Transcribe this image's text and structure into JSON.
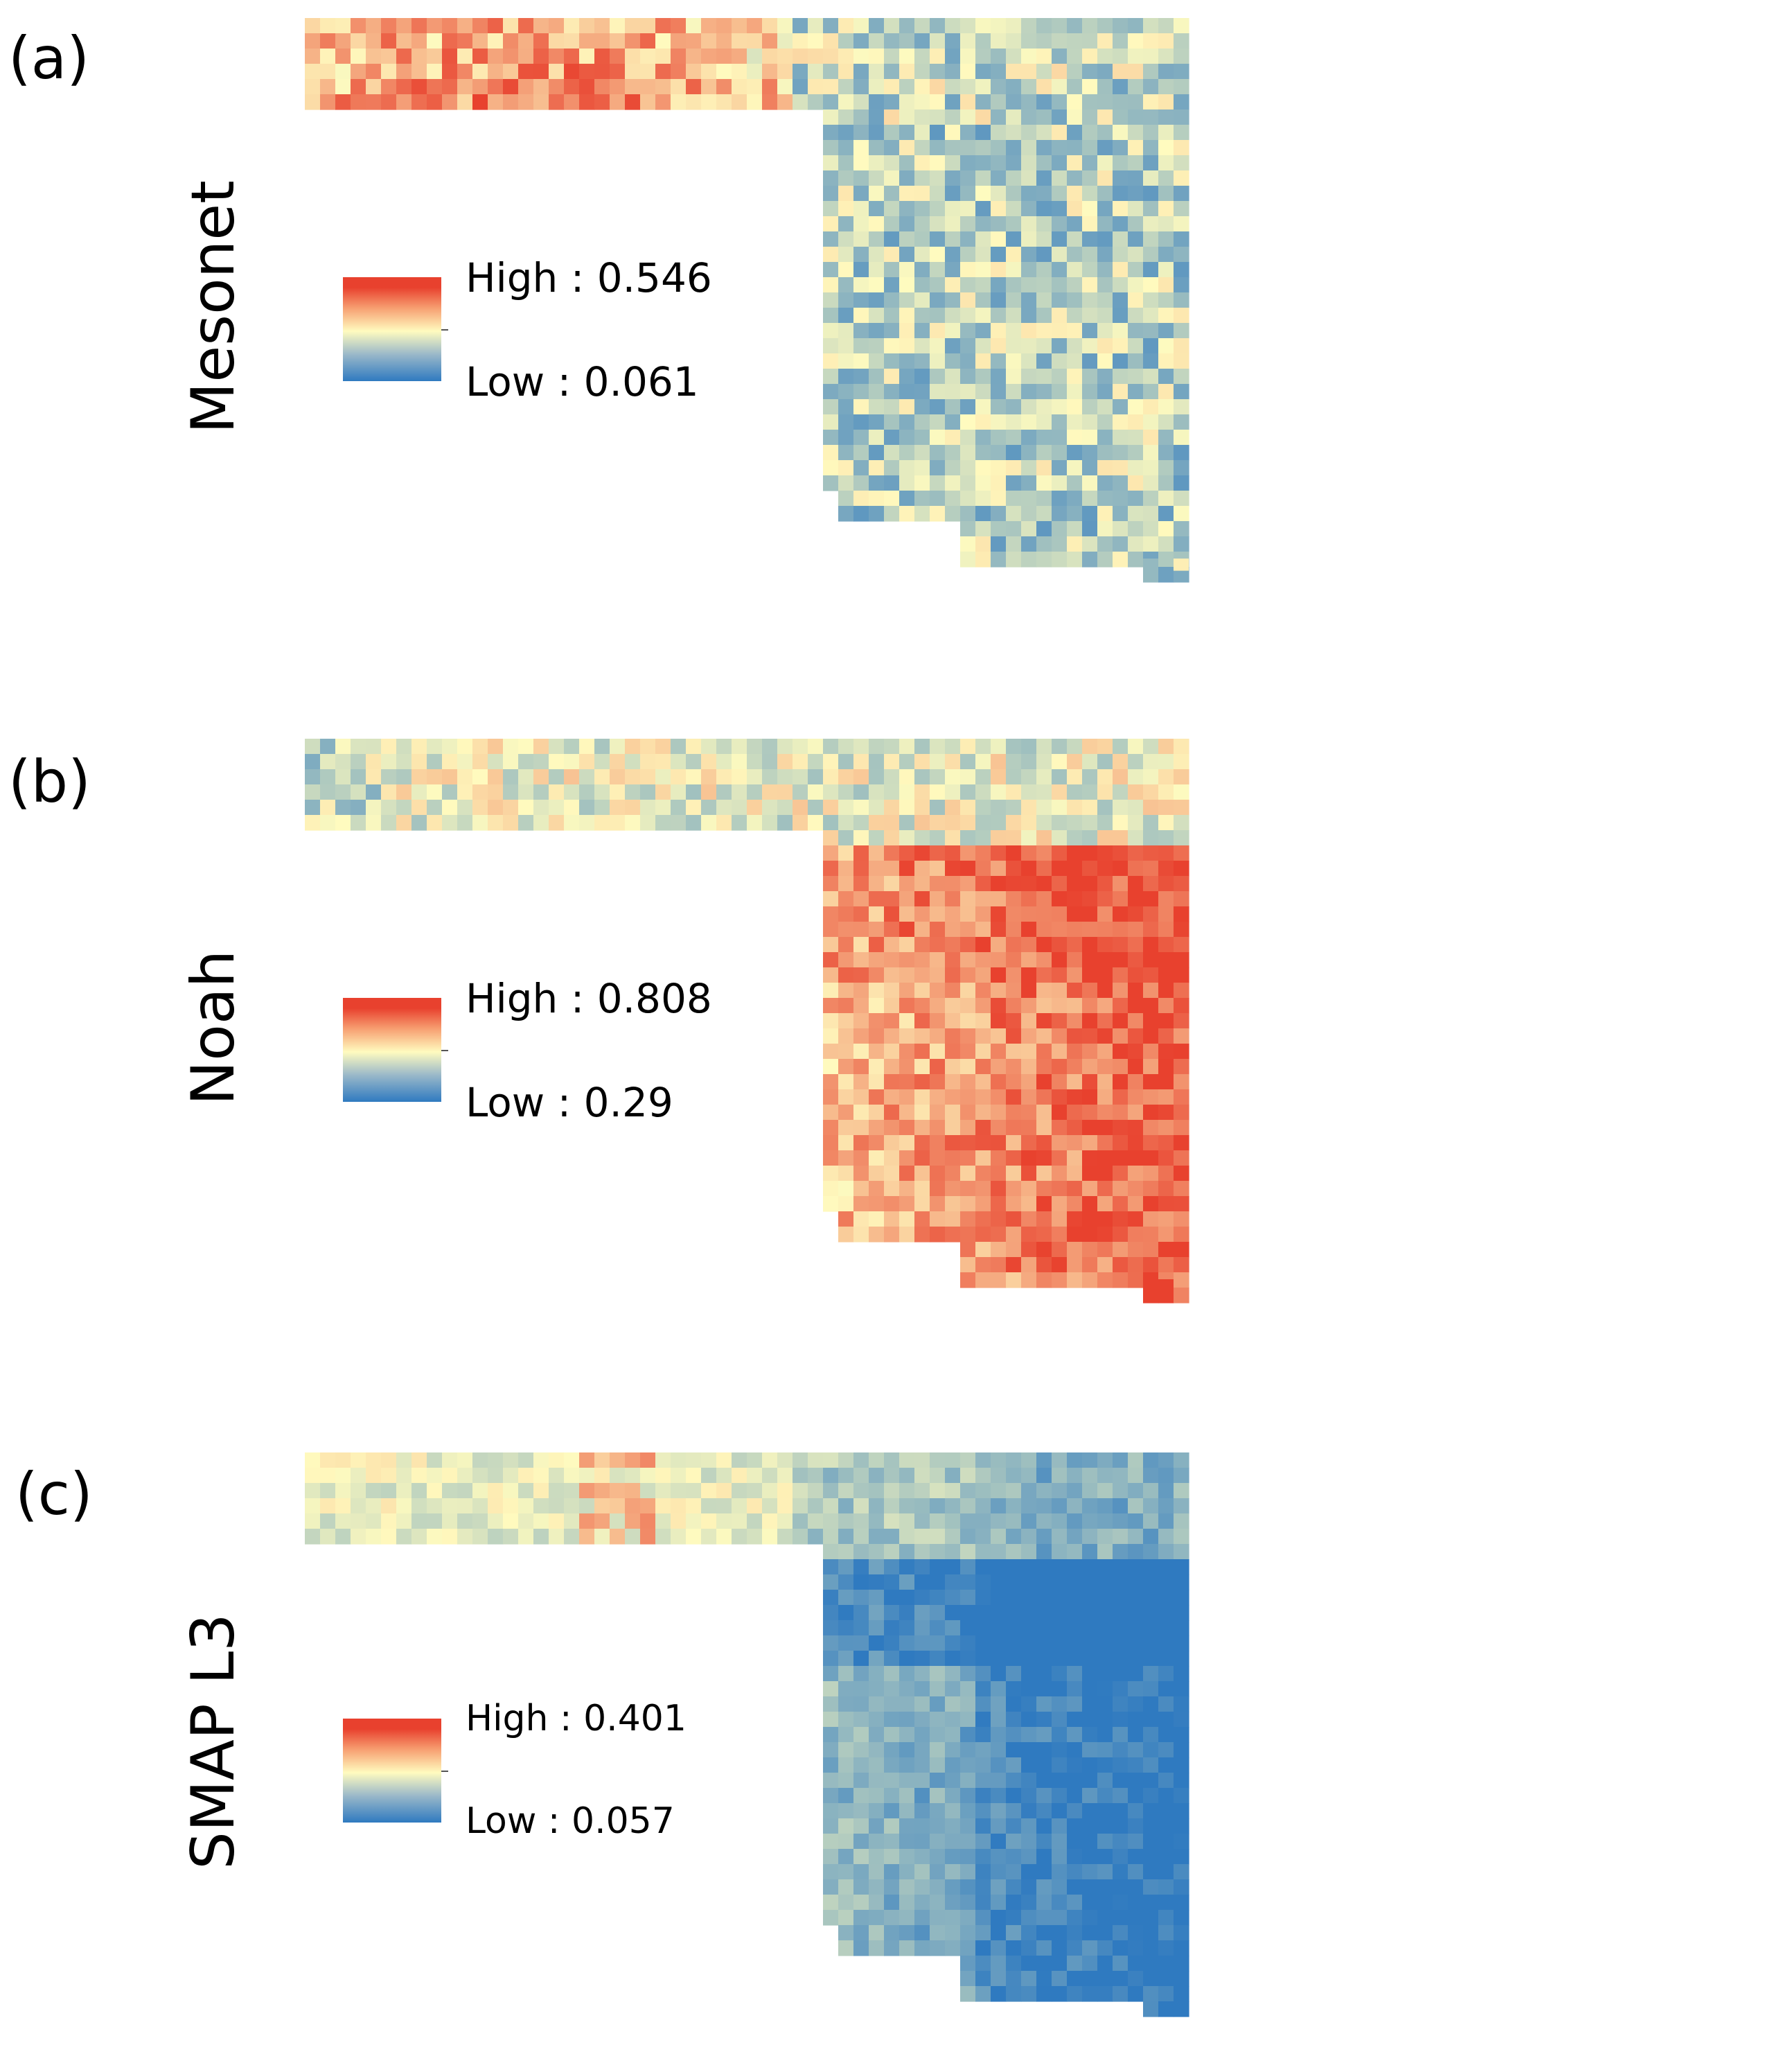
{
  "figure": {
    "colors": {
      "high": "#e8412e",
      "mid": "#fffbbf",
      "low": "#2f7ac0"
    }
  },
  "panels": [
    {
      "label": "(a)",
      "title": "Mesonet",
      "legend": {
        "high_text": "High : 0.546",
        "low_text": "Low : 0.061",
        "high_value": 0.546,
        "low_value": 0.061
      },
      "pattern": "west-high"
    },
    {
      "label": "(b)",
      "title": "Noah",
      "legend": {
        "high_text": "High : 0.808",
        "low_text": "Low : 0.29",
        "high_value": 0.808,
        "low_value": 0.29
      },
      "pattern": "east-high"
    },
    {
      "label": "(c)",
      "title": "SMAP L3",
      "legend": {
        "high_text": "High : 0.401",
        "low_text": "Low : 0.057",
        "high_value": 0.401,
        "low_value": 0.057
      },
      "pattern": "southwest-high-east-low"
    }
  ]
}
